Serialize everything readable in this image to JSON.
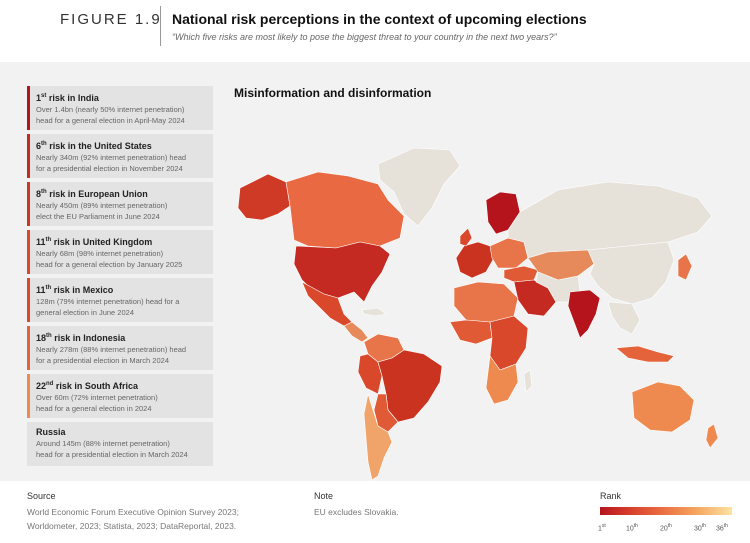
{
  "figure": {
    "label": "FIGURE 1.9",
    "title": "National risk perceptions in the context of upcoming elections",
    "subtitle": "“Which five risks are most likely to pose the biggest threat to your country in the next two years?”"
  },
  "risks": [
    {
      "rank": "1",
      "suffix": "st",
      "country": "India",
      "color": "#b5141c",
      "line1": "Over 1.4bn (nearly 50% internet penetration)",
      "line2": "head for a general election in April-May 2024"
    },
    {
      "rank": "6",
      "suffix": "th",
      "country": "the United States",
      "color": "#c42a21",
      "line1": "Nearly 340m (92% internet penetration) head",
      "line2": "for a presidential election in November 2024"
    },
    {
      "rank": "8",
      "suffix": "th",
      "country": "European Union",
      "color": "#cd3524",
      "line1": "Nearly 450m (89% internet penetration)",
      "line2": "elect the EU Parliament in June 2024"
    },
    {
      "rank": "11",
      "suffix": "th",
      "country": "United Kingdom",
      "color": "#d9482b",
      "line1": "Nearly 68m (98% internet penetration)",
      "line2": "head for a general election by January 2025"
    },
    {
      "rank": "11",
      "suffix": "th",
      "country": "Mexico",
      "color": "#d9482b",
      "line1": "128m (79% internet penetration) head for a",
      "line2": "general election in June 2024"
    },
    {
      "rank": "18",
      "suffix": "th",
      "country": "Indonesia",
      "color": "#e5633a",
      "line1": "Nearly 278m (88% internet penetration) head",
      "line2": "for a presidential election in March 2024"
    },
    {
      "rank": "22",
      "suffix": "nd",
      "country": "South Africa",
      "color": "#ee8a50",
      "line1": "Over 60m (72% internet penetration)",
      "line2": "head for a general election in 2024"
    },
    {
      "rank": "",
      "suffix": "",
      "country": "Russia",
      "color": "#e3e3e3",
      "line1": "Around 145m (88% internet penetration)",
      "line2": "head for a presidential election in March 2024"
    }
  ],
  "risk_prefix": " risk in ",
  "map": {
    "title": "Misinformation and disinformation",
    "no_data_color": "#e6e2da",
    "border_color": "#ffffff"
  },
  "footer": {
    "source_head": "Source",
    "source_line1": "World Economic Forum Executive Opinion Survey 2023;",
    "source_line2": "Worldometer, 2023; Statista, 2023; DataReportal, 2023.",
    "note_head": "Note",
    "note_text": "EU excludes Slovakia.",
    "legend_head": "Rank",
    "legend_ticks": [
      {
        "n": "1",
        "s": "st"
      },
      {
        "n": "10",
        "s": "th"
      },
      {
        "n": "20",
        "s": "th"
      },
      {
        "n": "30",
        "s": "th"
      },
      {
        "n": "36",
        "s": "th"
      }
    ]
  }
}
